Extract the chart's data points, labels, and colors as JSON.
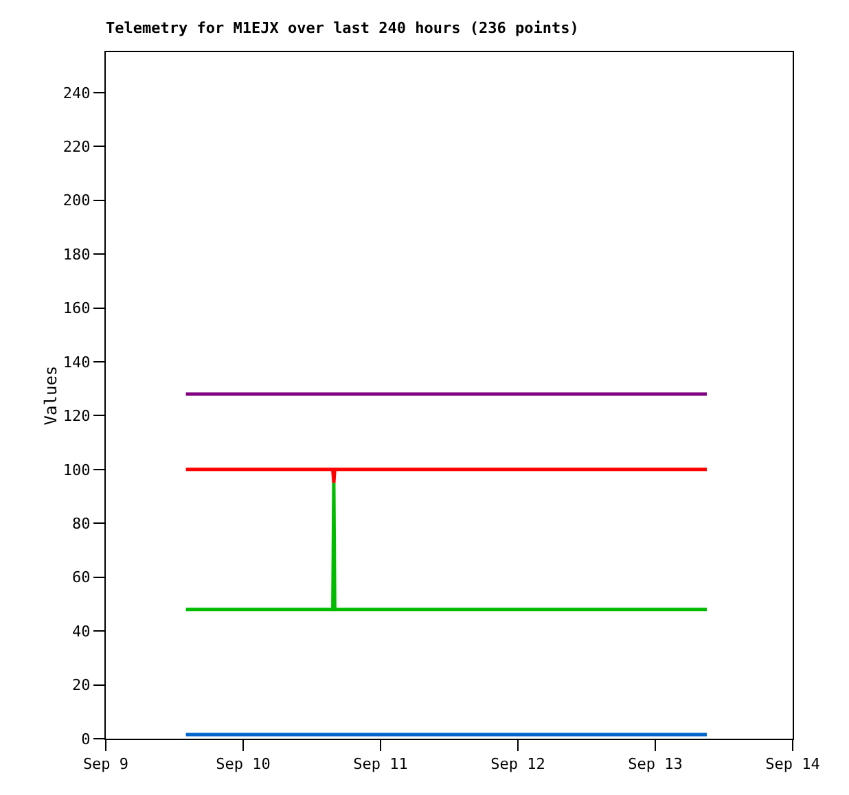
{
  "chart_data": {
    "type": "line",
    "title": "Telemetry for M1EJX over last 240 hours (236 points)",
    "ylabel": "Values",
    "x": [
      "--09-09T14:00",
      "--09-10T15:40",
      "--09-10T15:50",
      "--09-10T16:00",
      "--09-13T09:00"
    ],
    "series": [
      {
        "color": "#800080",
        "values": [
          128,
          128,
          128,
          128,
          128
        ]
      },
      {
        "color": "#ff0000",
        "values": [
          100,
          100,
          95,
          100,
          100
        ]
      },
      {
        "color": "#00bb00",
        "values": [
          48,
          48,
          95,
          48,
          48
        ]
      },
      {
        "color": "#0066cc",
        "values": [
          1.5,
          1.5,
          1.5,
          1.5,
          1.5
        ]
      }
    ],
    "xlim": [
      "--09-09",
      "--09-14"
    ],
    "xticks": [
      {
        "value": "--09-09",
        "label": "Sep 9"
      },
      {
        "value": "--09-10",
        "label": "Sep 10"
      },
      {
        "value": "--09-11",
        "label": "Sep 11"
      },
      {
        "value": "--09-12",
        "label": "Sep 12"
      },
      {
        "value": "--09-13",
        "label": "Sep 13"
      },
      {
        "value": "--09-14",
        "label": "Sep 14"
      }
    ],
    "ylim": [
      0,
      255
    ],
    "yticks": [
      0,
      20,
      40,
      60,
      80,
      100,
      120,
      140,
      160,
      180,
      200,
      220,
      240
    ],
    "grid": false,
    "marker": "none",
    "line_style": "solid"
  }
}
